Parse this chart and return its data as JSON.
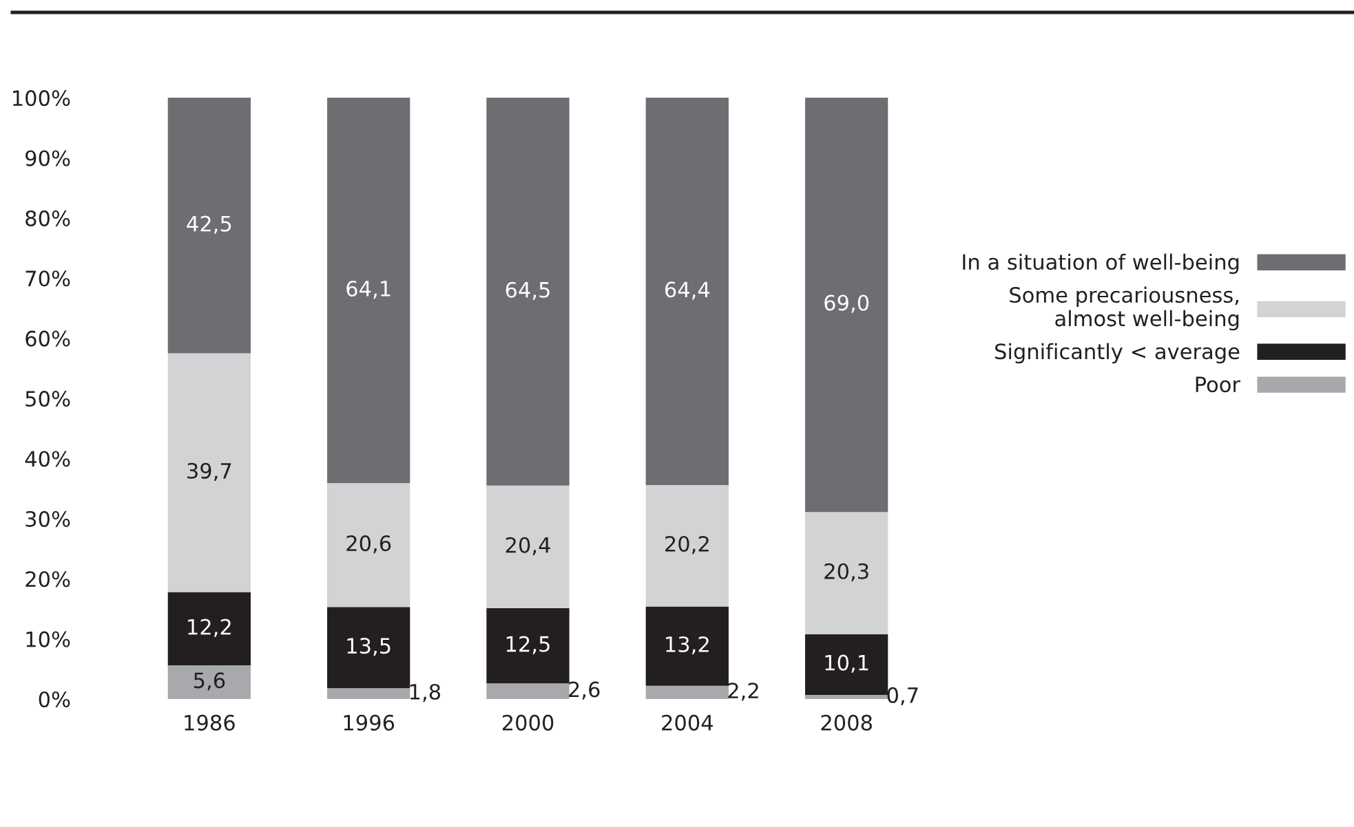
{
  "chart_data": {
    "type": "bar",
    "stacked": true,
    "categories": [
      "1986",
      "1996",
      "2000",
      "2004",
      "2008"
    ],
    "series": [
      {
        "name": "Poor",
        "color": "#a7a9ac",
        "values": [
          5.6,
          1.8,
          2.6,
          2.2,
          0.7
        ],
        "value_labels": [
          "5,6",
          "1,8",
          "2,6",
          "2,2",
          "0,7"
        ]
      },
      {
        "name": "Significantly < average",
        "color": "#231f20",
        "values": [
          12.2,
          13.5,
          12.5,
          13.2,
          10.1
        ],
        "value_labels": [
          "12,2",
          "13,5",
          "12,5",
          "13,2",
          "10,1"
        ]
      },
      {
        "name": "Some precariousness,\nalmost well-being",
        "color": "#d1d3d4",
        "values": [
          39.7,
          20.6,
          20.4,
          20.2,
          20.3
        ],
        "value_labels": [
          "39,7",
          "20,6",
          "20,4",
          "20,2",
          "20,3"
        ]
      },
      {
        "name": "In a situation of well-being",
        "color": "#6d6e72",
        "values": [
          42.5,
          64.1,
          64.5,
          64.4,
          69.0
        ],
        "value_labels": [
          "42,5",
          "64,1",
          "64,5",
          "64,4",
          "69,0"
        ]
      }
    ],
    "ylim": [
      0,
      100
    ],
    "yticks": [
      {
        "value": 0,
        "label": "0%"
      },
      {
        "value": 10,
        "label": "10%"
      },
      {
        "value": 20,
        "label": "20%"
      },
      {
        "value": 30,
        "label": "30%"
      },
      {
        "value": 40,
        "label": "40%"
      },
      {
        "value": 50,
        "label": "50%"
      },
      {
        "value": 60,
        "label": "60%"
      },
      {
        "value": 70,
        "label": "70%"
      },
      {
        "value": 80,
        "label": "80%"
      },
      {
        "value": 90,
        "label": "90%"
      },
      {
        "value": 100,
        "label": "100%"
      }
    ],
    "grid": false,
    "legend": "right"
  }
}
